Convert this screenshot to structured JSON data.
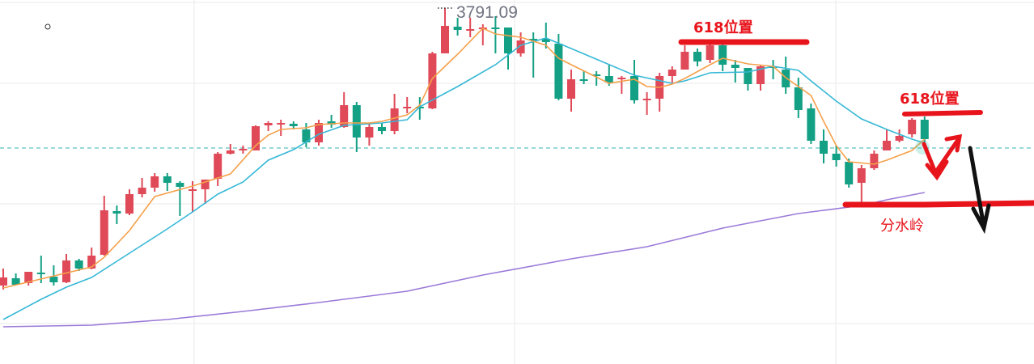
{
  "chart_data": {
    "type": "candlestick",
    "title": "",
    "xlabel": "",
    "ylabel": "",
    "grid": true,
    "colors": {
      "up": "#e04a58",
      "down": "#14a085",
      "ma_short": "#f5a04a",
      "ma_mid": "#36b8d6",
      "ma_long": "#9b7ad9",
      "reference_line": "#5cc2c2"
    },
    "high_label": "3791.09",
    "reference_price": 3618,
    "candles_ohlc": [
      [
        3448,
        3469,
        3443,
        3458
      ],
      [
        3457,
        3463,
        3449,
        3449
      ],
      [
        3451,
        3465,
        3448,
        3465
      ],
      [
        3464,
        3485,
        3451,
        3462
      ],
      [
        3459,
        3473,
        3448,
        3452
      ],
      [
        3452,
        3487,
        3451,
        3479
      ],
      [
        3479,
        3481,
        3466,
        3469
      ],
      [
        3469,
        3495,
        3468,
        3485
      ],
      [
        3486,
        3559,
        3485,
        3541
      ],
      [
        3540,
        3547,
        3524,
        3537
      ],
      [
        3537,
        3567,
        3535,
        3561
      ],
      [
        3561,
        3581,
        3557,
        3569
      ],
      [
        3569,
        3587,
        3564,
        3583
      ],
      [
        3583,
        3587,
        3565,
        3575
      ],
      [
        3575,
        3577,
        3534,
        3570
      ],
      [
        3566,
        3577,
        3539,
        3567
      ],
      [
        3567,
        3579,
        3549,
        3579
      ],
      [
        3580,
        3613,
        3571,
        3611
      ],
      [
        3611,
        3623,
        3610,
        3615
      ],
      [
        3615,
        3621,
        3611,
        3617
      ],
      [
        3615,
        3646,
        3615,
        3645
      ],
      [
        3646,
        3651,
        3639,
        3649
      ],
      [
        3648,
        3653,
        3633,
        3649
      ],
      [
        3648,
        3651,
        3641,
        3645
      ],
      [
        3641,
        3649,
        3619,
        3625
      ],
      [
        3625,
        3653,
        3621,
        3649
      ],
      [
        3651,
        3659,
        3643,
        3647
      ],
      [
        3644,
        3687,
        3643,
        3671
      ],
      [
        3671,
        3675,
        3613,
        3631
      ],
      [
        3631,
        3649,
        3621,
        3644
      ],
      [
        3644,
        3649,
        3635,
        3639
      ],
      [
        3639,
        3685,
        3635,
        3667
      ],
      [
        3668,
        3681,
        3661,
        3669
      ],
      [
        3669,
        3681,
        3653,
        3668
      ],
      [
        3667,
        3737,
        3666,
        3735
      ],
      [
        3735,
        3791.09,
        3735,
        3769
      ],
      [
        3768,
        3779,
        3757,
        3764
      ],
      [
        3764,
        3779,
        3755,
        3765
      ],
      [
        3766,
        3771,
        3745,
        3767
      ],
      [
        3767,
        3781,
        3735,
        3766
      ],
      [
        3767,
        3767,
        3715,
        3735
      ],
      [
        3735,
        3761,
        3731,
        3751
      ],
      [
        3753,
        3761,
        3705,
        3751
      ],
      [
        3753,
        3773,
        3741,
        3749
      ],
      [
        3747,
        3759,
        3677,
        3679
      ],
      [
        3679,
        3715,
        3663,
        3703
      ],
      [
        3703,
        3713,
        3697,
        3701
      ],
      [
        3709,
        3713,
        3695,
        3707
      ],
      [
        3707,
        3721,
        3695,
        3699
      ],
      [
        3703,
        3707,
        3685,
        3705
      ],
      [
        3707,
        3727,
        3673,
        3677
      ],
      [
        3678,
        3687,
        3659,
        3679
      ],
      [
        3679,
        3711,
        3663,
        3707
      ],
      [
        3707,
        3719,
        3699,
        3715
      ],
      [
        3715,
        3745,
        3715,
        3737
      ],
      [
        3737,
        3741,
        3719,
        3725
      ],
      [
        3727,
        3747,
        3723,
        3745
      ],
      [
        3745,
        3747,
        3713,
        3721
      ],
      [
        3721,
        3727,
        3699,
        3717
      ],
      [
        3717,
        3717,
        3689,
        3697
      ],
      [
        3697,
        3721,
        3689,
        3719
      ],
      [
        3719,
        3727,
        3703,
        3717
      ],
      [
        3715,
        3731,
        3685,
        3693
      ],
      [
        3693,
        3705,
        3655,
        3665
      ],
      [
        3667,
        3673,
        3623,
        3627
      ],
      [
        3627,
        3641,
        3599,
        3611
      ],
      [
        3611,
        3621,
        3595,
        3603
      ],
      [
        3601,
        3605,
        3569,
        3573
      ],
      [
        3575,
        3597,
        3551,
        3593
      ],
      [
        3593,
        3615,
        3591,
        3611
      ],
      [
        3615,
        3641,
        3615,
        3627
      ],
      [
        3627,
        3641,
        3625,
        3633
      ],
      [
        3635,
        3655,
        3631,
        3653
      ],
      [
        3653,
        3657,
        3625,
        3629
      ]
    ],
    "ma_short": [
      [
        0,
        3445
      ],
      [
        7,
        3471
      ],
      [
        8,
        3483
      ],
      [
        10,
        3516
      ],
      [
        12,
        3558
      ],
      [
        15,
        3571
      ],
      [
        18,
        3586
      ],
      [
        20,
        3621
      ],
      [
        21,
        3634
      ],
      [
        22,
        3641
      ],
      [
        23,
        3642
      ],
      [
        24,
        3643
      ],
      [
        25,
        3647
      ],
      [
        27,
        3649
      ],
      [
        29,
        3649
      ],
      [
        30,
        3651
      ],
      [
        32,
        3659
      ],
      [
        33,
        3671
      ],
      [
        34,
        3704
      ],
      [
        36,
        3734
      ],
      [
        38,
        3766
      ],
      [
        39,
        3759
      ],
      [
        41,
        3755
      ],
      [
        43,
        3745
      ],
      [
        44,
        3729
      ],
      [
        45,
        3721
      ],
      [
        48,
        3698
      ],
      [
        50,
        3703
      ],
      [
        51,
        3694
      ],
      [
        52,
        3693
      ],
      [
        53,
        3697
      ],
      [
        54,
        3704
      ],
      [
        56,
        3721
      ],
      [
        57,
        3729
      ],
      [
        59,
        3722
      ],
      [
        61,
        3719
      ],
      [
        62,
        3705
      ],
      [
        64,
        3683
      ],
      [
        65,
        3651
      ],
      [
        66,
        3621
      ],
      [
        67,
        3601
      ],
      [
        69,
        3598
      ],
      [
        70,
        3603
      ],
      [
        72,
        3615
      ],
      [
        73,
        3629
      ]
    ],
    "ma_mid": [
      [
        0,
        3406
      ],
      [
        3,
        3431
      ],
      [
        5,
        3446
      ],
      [
        7,
        3458
      ],
      [
        10,
        3488
      ],
      [
        13,
        3518
      ],
      [
        15,
        3539
      ],
      [
        17,
        3561
      ],
      [
        19,
        3576
      ],
      [
        21,
        3603
      ],
      [
        23,
        3616
      ],
      [
        25,
        3635
      ],
      [
        27,
        3646
      ],
      [
        30,
        3649
      ],
      [
        32,
        3653
      ],
      [
        33,
        3669
      ],
      [
        36,
        3694
      ],
      [
        39,
        3721
      ],
      [
        41,
        3745
      ],
      [
        43,
        3754
      ],
      [
        45,
        3741
      ],
      [
        50,
        3708
      ],
      [
        53,
        3698
      ],
      [
        54,
        3701
      ],
      [
        56,
        3711
      ],
      [
        59,
        3712
      ],
      [
        61,
        3719
      ],
      [
        63,
        3714
      ],
      [
        64,
        3701
      ],
      [
        66,
        3676
      ],
      [
        68,
        3654
      ],
      [
        70,
        3641
      ],
      [
        72,
        3629
      ],
      [
        73,
        3624
      ]
    ],
    "ma_long": [
      [
        0,
        3397
      ],
      [
        7,
        3399
      ],
      [
        13,
        3406
      ],
      [
        19,
        3416
      ],
      [
        25,
        3427
      ],
      [
        32,
        3441
      ],
      [
        38,
        3461
      ],
      [
        45,
        3481
      ],
      [
        51,
        3496
      ],
      [
        57,
        3519
      ],
      [
        63,
        3537
      ],
      [
        68,
        3547
      ],
      [
        70,
        3554
      ],
      [
        73,
        3563
      ]
    ]
  },
  "annotations": {
    "fib_label_1": "618位置",
    "fib_label_2": "618位置",
    "watershed_label": "分水岭",
    "color": "#e8141c"
  }
}
